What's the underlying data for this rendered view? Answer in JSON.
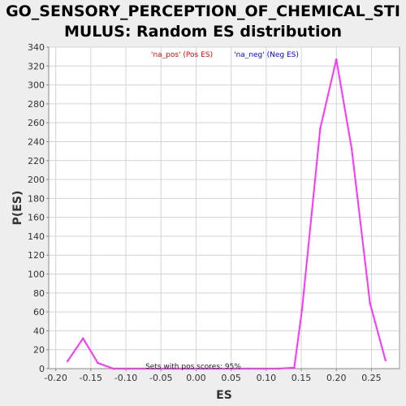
{
  "chart_data": {
    "type": "line",
    "title_line1": "GO_SENSORY_PERCEPTION_OF_CHEMICAL_STI",
    "title_line2": "MULUS: Random ES distribution",
    "xlabel": "ES",
    "ylabel": "P(ES)",
    "xlim": [
      -0.21,
      0.29
    ],
    "ylim": [
      0,
      340
    ],
    "xticks": [
      -0.2,
      -0.15,
      -0.1,
      -0.05,
      0.0,
      0.05,
      0.1,
      0.15,
      0.2,
      0.25
    ],
    "xtick_labels": [
      "-0.20",
      "-0.15",
      "-0.10",
      "-0.05",
      "0.00",
      "0.05",
      "0.10",
      "0.15",
      "0.20",
      "0.25"
    ],
    "yticks": [
      0,
      20,
      40,
      60,
      80,
      100,
      120,
      140,
      160,
      180,
      200,
      220,
      240,
      260,
      280,
      300,
      320,
      340
    ],
    "grid": true,
    "legend": [
      {
        "label": "'na_pos' (Pos ES)",
        "color": "#ff0000"
      },
      {
        "label": "'na_neg' (Neg ES)",
        "color": "#0000ff"
      }
    ],
    "annotation": "Sets with pos scores: 95%",
    "series": [
      {
        "color": "#ff33ff",
        "x": [
          -0.183,
          -0.161,
          -0.14,
          -0.118,
          -0.097,
          -0.075,
          -0.054,
          -0.032,
          -0.011,
          0.011,
          0.032,
          0.054,
          0.075,
          0.097,
          0.118,
          0.14,
          0.151,
          0.177,
          0.2,
          0.222,
          0.248,
          0.27
        ],
        "y": [
          8,
          32,
          6,
          0,
          0,
          0,
          0,
          0,
          0,
          0,
          0,
          0,
          0,
          0,
          0,
          1,
          62,
          254,
          327,
          232,
          69,
          9
        ]
      }
    ]
  }
}
